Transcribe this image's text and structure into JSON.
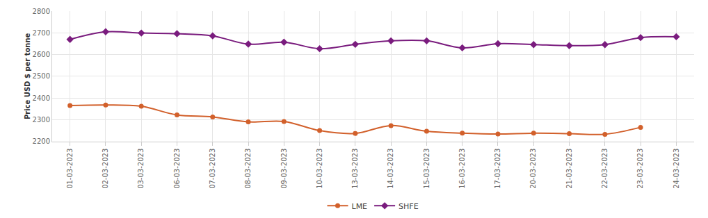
{
  "chart_data": {
    "type": "line",
    "y_label": "Price USD $ per tonne",
    "categories": [
      "01-03-2023",
      "02-03-2023",
      "03-03-2023",
      "06-03-2023",
      "07-03-2023",
      "08-03-2023",
      "09-03-2023",
      "10-03-2023",
      "13-03-2023",
      "14-03-2023",
      "15-03-2023",
      "16-03-2023",
      "17-03-2023",
      "20-03-2023",
      "21-03-2023",
      "22-03-2023",
      "23-03-2023",
      "24-03-2023"
    ],
    "series": [
      {
        "name": "LME",
        "color": "#d2602b",
        "marker": "circle",
        "line_style": "smooth",
        "values": [
          2365,
          2368,
          2362,
          2322,
          2313,
          2290,
          2292,
          2250,
          2237,
          2273,
          2247,
          2238,
          2234,
          2238,
          2236,
          2233,
          2265,
          null
        ]
      },
      {
        "name": "SHFE",
        "color": "#7a1c7e",
        "marker": "diamond",
        "line_style": "smooth",
        "values": [
          2670,
          2705,
          2699,
          2696,
          2686,
          2648,
          2657,
          2627,
          2647,
          2663,
          2663,
          2631,
          2650,
          2646,
          2641,
          2646,
          2678,
          2682
        ]
      }
    ],
    "ylim": [
      2200,
      2800
    ],
    "yticks": [
      2200,
      2300,
      2400,
      2500,
      2600,
      2700,
      2800
    ],
    "grid": true,
    "legend": "bottom"
  }
}
